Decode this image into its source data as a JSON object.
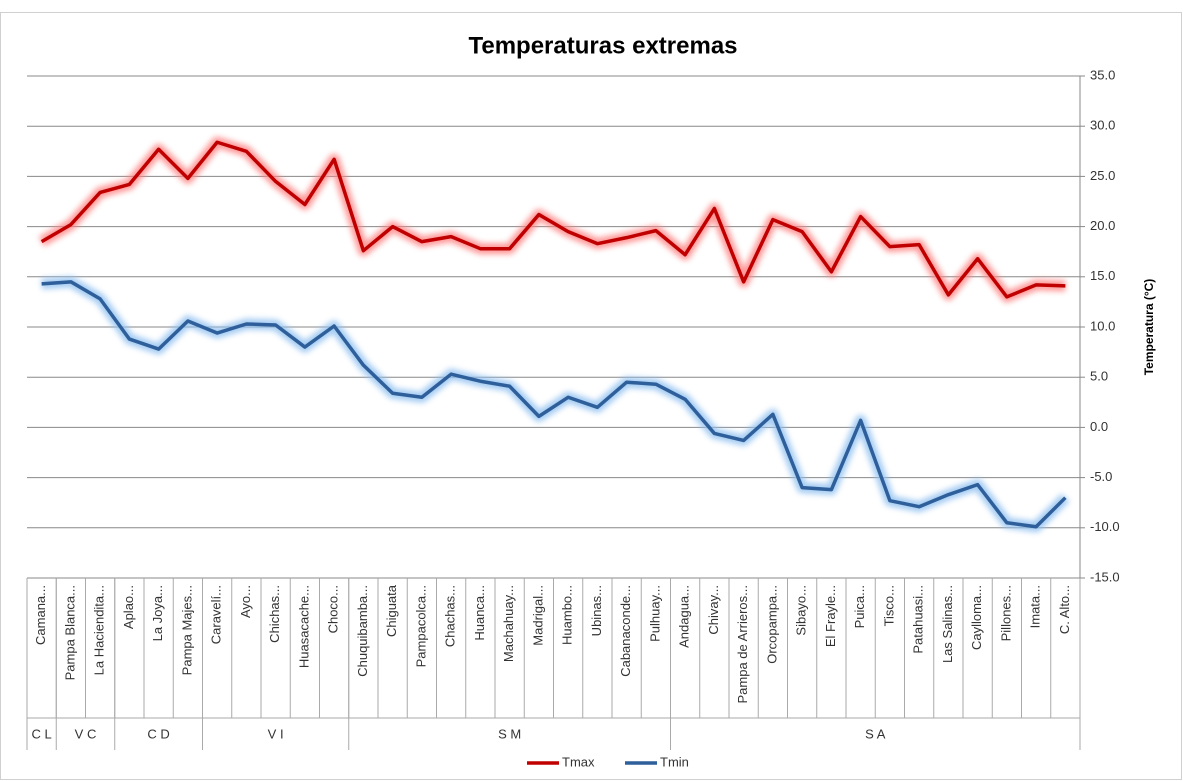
{
  "chart_data": {
    "type": "line",
    "title": "Temperaturas extremas",
    "y_label": "Temperatura (°C)",
    "categories": [
      "Camana...",
      "Pampa Blanca...",
      "La Haciendita...",
      "Aplao...",
      "La Joya...",
      "Pampa Majes...",
      "Caravelí...",
      "Ayo...",
      "Chichas...",
      "Huasacache...",
      "Choco...",
      "Chuquibamba...",
      "Chiguata",
      "Pampacolca...",
      "Chachas...",
      "Huanca...",
      "Machahuay...",
      "Madrigal...",
      "Huambo...",
      "Ubinas...",
      "Cabanaconde...",
      "Pulhuay...",
      "Andagua...",
      "Chivay...",
      "Pampa de Arrieros...",
      "Orcopampa...",
      "Sibayo...",
      "El Frayle...",
      "Puica...",
      "Tisco...",
      "Patahuasi...",
      "Las Salinas...",
      "Caylloma...",
      "Pillones...",
      "Imata...",
      "C. Alto..."
    ],
    "groups": [
      {
        "label": "C L",
        "count": 1
      },
      {
        "label": "V C",
        "count": 2
      },
      {
        "label": "C D",
        "count": 3
      },
      {
        "label": "V I",
        "count": 5
      },
      {
        "label": "S M",
        "count": 11
      },
      {
        "label": "S A",
        "count": 14
      }
    ],
    "series": [
      {
        "name": "Tmax",
        "color": "#c00000",
        "glow": "#ff8080",
        "values": [
          18.5,
          20.2,
          23.4,
          24.2,
          27.7,
          24.8,
          28.4,
          27.5,
          24.5,
          22.2,
          26.7,
          17.6,
          20.0,
          18.5,
          19.0,
          17.8,
          17.8,
          21.2,
          19.5,
          18.3,
          18.9,
          19.6,
          17.2,
          21.8,
          14.5,
          20.7,
          19.5,
          15.5,
          21.0,
          18.0,
          18.2,
          13.2,
          16.8,
          13.0,
          14.2,
          14.1
        ]
      },
      {
        "name": "Tmin",
        "color": "#2e5f9a",
        "glow": "#8fc0f0",
        "values": [
          14.3,
          14.5,
          12.8,
          8.8,
          7.8,
          10.6,
          9.4,
          10.3,
          10.2,
          8.0,
          10.1,
          6.2,
          3.4,
          3.0,
          5.3,
          4.6,
          4.1,
          1.1,
          3.0,
          2.0,
          4.5,
          4.3,
          2.8,
          -0.6,
          -1.3,
          1.3,
          -6.0,
          -6.2,
          0.7,
          -7.3,
          -7.9,
          -6.7,
          -5.7,
          -9.5,
          -9.9,
          -7.0
        ]
      }
    ],
    "ylim": [
      -15,
      35
    ],
    "yticks": [
      {
        "value": -15,
        "label": "-15.0"
      },
      {
        "value": -10,
        "label": "-10.0"
      },
      {
        "value": -5,
        "label": "-5.0"
      },
      {
        "value": 0,
        "label": "0.0"
      },
      {
        "value": 5,
        "label": "5.0"
      },
      {
        "value": 10,
        "label": "10.0"
      },
      {
        "value": 15,
        "label": "15.0"
      },
      {
        "value": 20,
        "label": "20.0"
      },
      {
        "value": 25,
        "label": "25.0"
      },
      {
        "value": 30,
        "label": "30.0"
      },
      {
        "value": 35,
        "label": "35.0"
      }
    ],
    "grid": true,
    "legend": "bottom"
  }
}
